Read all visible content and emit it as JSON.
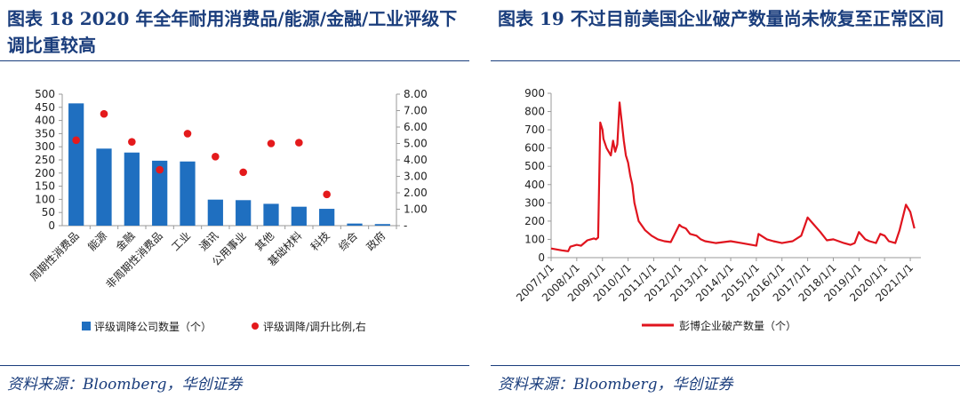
{
  "left": {
    "title": "图表 18   2020 年全年耐用消费品/能源/金融/工业评级下调比重较高",
    "source": "资料来源：Bloomberg，华创证券",
    "chart_data": {
      "type": "bar",
      "categories": [
        "周期性消费品",
        "能源",
        "金融",
        "非周期性消费品",
        "工业",
        "通讯",
        "公用事业",
        "其他",
        "基础材料",
        "科技",
        "综合",
        "政府"
      ],
      "series": [
        {
          "name": "评级调降公司数量（个）",
          "type": "bar",
          "axis": "left",
          "color": "#1f6fc0",
          "values": [
            465,
            293,
            278,
            247,
            244,
            99,
            97,
            83,
            72,
            64,
            8,
            6
          ]
        },
        {
          "name": "评级调降/调升比例,右",
          "type": "scatter",
          "axis": "right",
          "color": "#e41a1c",
          "values": [
            5.2,
            6.8,
            5.1,
            3.4,
            5.6,
            4.2,
            3.25,
            5.0,
            5.05,
            1.9,
            null,
            null
          ]
        }
      ],
      "ylim_left": [
        0,
        500
      ],
      "yticks_left": [
        "0",
        "50",
        "100",
        "150",
        "200",
        "250",
        "300",
        "350",
        "400",
        "450",
        "500"
      ],
      "ylim_right": [
        0,
        8
      ],
      "yticks_right": [
        "-",
        "1.00",
        "2.00",
        "3.00",
        "4.00",
        "5.00",
        "6.00",
        "7.00",
        "8.00"
      ],
      "legend_position": "bottom"
    }
  },
  "right": {
    "title": "图表 19   不过目前美国企业破产数量尚未恢复至正常区间",
    "source": "资料来源：Bloomberg，华创证券",
    "chart_data": {
      "type": "line",
      "series": [
        {
          "name": "彭博企业破产数量（个）",
          "color": "#e0141e",
          "x": [
            "2007/1/1",
            "2007/6/1",
            "2007/9/1",
            "2007/10/1",
            "2008/1/1",
            "2008/3/1",
            "2008/6/1",
            "2008/9/1",
            "2008/10/1",
            "2008/11/1",
            "2008/12/1",
            "2009/1/1",
            "2009/1/15",
            "2009/3/1",
            "2009/5/1",
            "2009/6/1",
            "2009/7/1",
            "2009/8/1",
            "2009/9/1",
            "2009/10/1",
            "2009/11/1",
            "2009/12/1",
            "2010/1/1",
            "2010/2/1",
            "2010/3/1",
            "2010/4/1",
            "2010/6/1",
            "2010/9/1",
            "2010/12/1",
            "2011/3/1",
            "2011/6/1",
            "2011/9/1",
            "2012/1/1",
            "2012/2/1",
            "2012/4/1",
            "2012/6/1",
            "2012/9/1",
            "2012/11/1",
            "2013/1/1",
            "2013/6/1",
            "2014/1/1",
            "2014/6/1",
            "2015/1/1",
            "2015/2/1",
            "2015/6/1",
            "2015/9/1",
            "2016/1/1",
            "2016/6/1",
            "2016/10/1",
            "2017/1/1",
            "2017/4/1",
            "2017/7/1",
            "2017/10/1",
            "2018/1/1",
            "2018/6/1",
            "2018/9/1",
            "2018/11/1",
            "2019/1/1",
            "2019/4/1",
            "2019/6/1",
            "2019/9/1",
            "2019/11/1",
            "2020/1/1",
            "2020/3/1",
            "2020/6/1",
            "2020/8/1",
            "2020/11/1",
            "2021/1/1",
            "2021/3/1"
          ],
          "values": [
            50,
            40,
            35,
            60,
            70,
            65,
            95,
            105,
            100,
            110,
            740,
            700,
            650,
            600,
            560,
            640,
            580,
            620,
            850,
            750,
            640,
            560,
            520,
            450,
            400,
            300,
            200,
            150,
            120,
            100,
            90,
            85,
            180,
            170,
            160,
            130,
            120,
            100,
            90,
            80,
            90,
            80,
            65,
            130,
            100,
            90,
            80,
            90,
            120,
            220,
            180,
            140,
            95,
            100,
            80,
            70,
            80,
            140,
            100,
            90,
            80,
            130,
            120,
            90,
            80,
            150,
            290,
            250,
            160
          ]
        }
      ],
      "ylim": [
        0,
        900
      ],
      "yticks": [
        "0",
        "100",
        "200",
        "300",
        "400",
        "500",
        "600",
        "700",
        "800",
        "900"
      ],
      "xticks": [
        "2007/1/1",
        "2008/1/1",
        "2009/1/1",
        "2010/1/1",
        "2011/1/1",
        "2012/1/1",
        "2013/1/1",
        "2014/1/1",
        "2015/1/1",
        "2016/1/1",
        "2017/1/1",
        "2018/1/1",
        "2019/1/1",
        "2020/1/1",
        "2021/1/1"
      ],
      "legend_position": "bottom"
    }
  }
}
